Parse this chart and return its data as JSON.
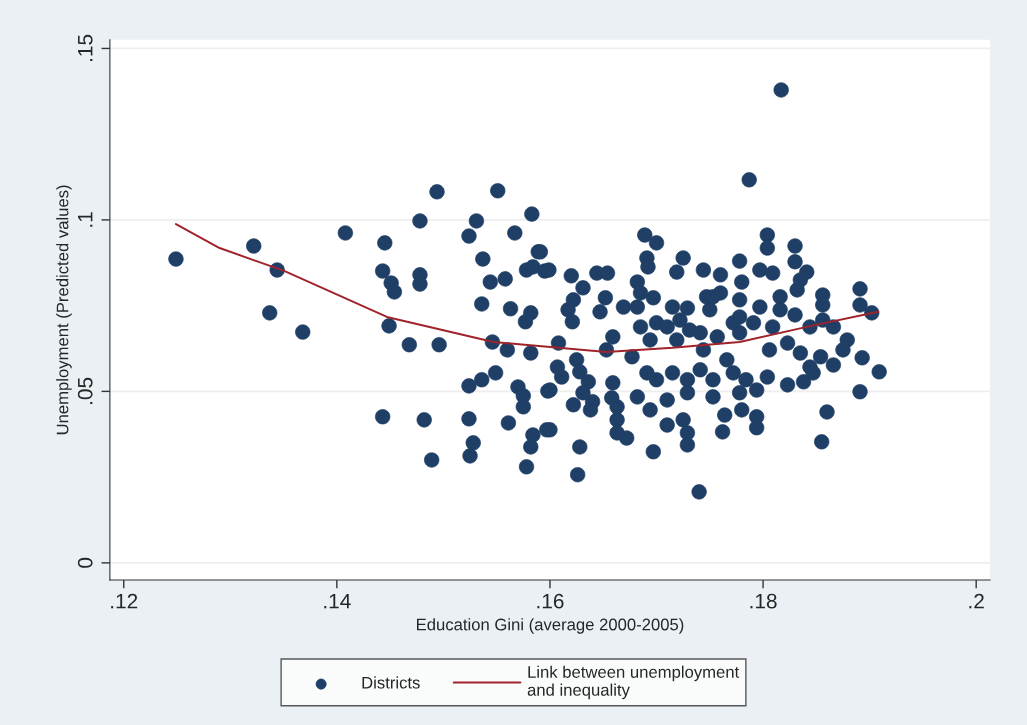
{
  "chart_data": {
    "type": "scatter",
    "xlabel": "Education Gini (average 2000-2005)",
    "ylabel": "Unemployment (Predicted values)",
    "xlim": [
      0.1187,
      0.2013
    ],
    "ylim": [
      -0.005,
      0.1525
    ],
    "xticks": [
      {
        "value": 0.12,
        "label": ".12"
      },
      {
        "value": 0.14,
        "label": ".14"
      },
      {
        "value": 0.16,
        "label": ".16"
      },
      {
        "value": 0.18,
        "label": ".18"
      },
      {
        "value": 0.2,
        "label": ".2"
      }
    ],
    "yticks": [
      {
        "value": 0,
        "label": "0"
      },
      {
        "value": 0.05,
        "label": ".05"
      },
      {
        "value": 0.1,
        "label": ".1"
      },
      {
        "value": 0.15,
        "label": ".15"
      }
    ],
    "grid": "y",
    "legend": "bottom",
    "marker": "circle",
    "series": [
      {
        "name": "Districts",
        "color": "#1f3f66",
        "x": [
          0.1249,
          0.1322,
          0.1344,
          0.1337,
          0.1368,
          0.1408,
          0.1445,
          0.1443,
          0.1451,
          0.1454,
          0.1449,
          0.1468,
          0.1496,
          0.1478,
          0.1478,
          0.1478,
          0.1494,
          0.1443,
          0.1482,
          0.1489,
          0.1551,
          0.1531,
          0.1524,
          0.1537,
          0.1544,
          0.1558,
          0.1536,
          0.1563,
          0.1583,
          0.1567,
          0.1589,
          0.1578,
          0.1584,
          0.1595,
          0.1582,
          0.1577,
          0.1546,
          0.156,
          0.1582,
          0.1549,
          0.1536,
          0.1524,
          0.157,
          0.1575,
          0.1575,
          0.1598,
          0.1524,
          0.1561,
          0.1528,
          0.1525,
          0.1584,
          0.1582,
          0.1578,
          0.1597,
          0.1817,
          0.1787,
          0.1689,
          0.17,
          0.1691,
          0.1692,
          0.1725,
          0.1719,
          0.1744,
          0.176,
          0.1778,
          0.1804,
          0.1804,
          0.183,
          0.183,
          0.1797,
          0.1809,
          0.1841,
          0.1835,
          0.178,
          0.1891,
          0.1891,
          0.1902,
          0.1856,
          0.1856,
          0.1832,
          0.1816,
          0.176,
          0.1747,
          0.1778,
          0.1591,
          0.1599,
          0.162,
          0.1631,
          0.1622,
          0.1617,
          0.1621,
          0.1644,
          0.1654,
          0.1652,
          0.1647,
          0.1669,
          0.1682,
          0.1685,
          0.1697,
          0.1682,
          0.1715,
          0.1729,
          0.1753,
          0.175,
          0.1778,
          0.1797,
          0.1816,
          0.183,
          0.1844,
          0.1856,
          0.1866,
          0.1608,
          0.1653,
          0.1659,
          0.1677,
          0.1685,
          0.17,
          0.1694,
          0.171,
          0.1722,
          0.1731,
          0.1719,
          0.1741,
          0.1744,
          0.1757,
          0.1772,
          0.1778,
          0.1791,
          0.1809,
          0.1806,
          0.1823,
          0.1835,
          0.1879,
          0.1875,
          0.1854,
          0.1866,
          0.1893,
          0.1909,
          0.1844,
          0.1847,
          0.1838,
          0.1823,
          0.1891,
          0.186,
          0.1855,
          0.1607,
          0.1611,
          0.16,
          0.1625,
          0.1628,
          0.1636,
          0.1631,
          0.1622,
          0.164,
          0.1638,
          0.1659,
          0.1658,
          0.1663,
          0.1663,
          0.1663,
          0.1672,
          0.16,
          0.1628,
          0.1626,
          0.1682,
          0.1691,
          0.17,
          0.1694,
          0.171,
          0.1715,
          0.1729,
          0.1729,
          0.1741,
          0.1753,
          0.1766,
          0.1772,
          0.1784,
          0.1778,
          0.1794,
          0.1804,
          0.1753,
          0.171,
          0.1725,
          0.1729,
          0.1729,
          0.1764,
          0.1762,
          0.178,
          0.1794,
          0.1794,
          0.1697,
          0.174
        ],
        "values": [
          0.0886,
          0.0924,
          0.0854,
          0.0729,
          0.0673,
          0.0962,
          0.0933,
          0.0851,
          0.0816,
          0.079,
          0.0691,
          0.0636,
          0.0636,
          0.0997,
          0.084,
          0.0813,
          0.1082,
          0.0426,
          0.0417,
          0.03,
          0.1085,
          0.0997,
          0.0953,
          0.0886,
          0.0819,
          0.0828,
          0.0755,
          0.0741,
          0.1017,
          0.0962,
          0.0907,
          0.0854,
          0.0863,
          0.0851,
          0.0729,
          0.0703,
          0.0644,
          0.0621,
          0.0612,
          0.0554,
          0.0534,
          0.0516,
          0.0513,
          0.0487,
          0.0455,
          0.0501,
          0.042,
          0.0408,
          0.035,
          0.0312,
          0.0373,
          0.0338,
          0.028,
          0.0388,
          0.1379,
          0.1117,
          0.0956,
          0.0933,
          0.0889,
          0.0863,
          0.0889,
          0.0848,
          0.0854,
          0.084,
          0.088,
          0.0956,
          0.0918,
          0.0924,
          0.0878,
          0.0854,
          0.0845,
          0.0848,
          0.0825,
          0.0819,
          0.0799,
          0.0752,
          0.0729,
          0.0781,
          0.0752,
          0.0796,
          0.0776,
          0.0787,
          0.0776,
          0.0767,
          0.0907,
          0.0854,
          0.0837,
          0.0802,
          0.0767,
          0.0738,
          0.0703,
          0.0845,
          0.0845,
          0.0773,
          0.0732,
          0.0746,
          0.0819,
          0.0787,
          0.0773,
          0.0746,
          0.0746,
          0.0743,
          0.0776,
          0.0738,
          0.0717,
          0.0746,
          0.0738,
          0.0723,
          0.0688,
          0.0708,
          0.0688,
          0.0641,
          0.0621,
          0.0659,
          0.0601,
          0.0688,
          0.07,
          0.065,
          0.0688,
          0.0708,
          0.0679,
          0.065,
          0.0671,
          0.0621,
          0.0659,
          0.07,
          0.0671,
          0.07,
          0.0688,
          0.0621,
          0.0641,
          0.0612,
          0.065,
          0.0621,
          0.0601,
          0.0577,
          0.0598,
          0.0557,
          0.0571,
          0.0554,
          0.0528,
          0.0519,
          0.0499,
          0.044,
          0.0353,
          0.0571,
          0.0542,
          0.0504,
          0.0592,
          0.0557,
          0.0528,
          0.0496,
          0.0461,
          0.047,
          0.0446,
          0.0525,
          0.0481,
          0.0455,
          0.0417,
          0.0379,
          0.0364,
          0.0388,
          0.0338,
          0.0257,
          0.0484,
          0.0554,
          0.0534,
          0.0446,
          0.0475,
          0.0554,
          0.0534,
          0.0496,
          0.0563,
          0.0534,
          0.0592,
          0.0554,
          0.0534,
          0.0496,
          0.0504,
          0.0542,
          0.0484,
          0.0402,
          0.0417,
          0.0379,
          0.0344,
          0.0431,
          0.0382,
          0.0446,
          0.0426,
          0.0394,
          0.0324,
          0.0207
        ]
      },
      {
        "name": "Link between unemployment\nand inequality",
        "type": "line",
        "color": "#a0232b",
        "marker": "none",
        "x": [
          0.1249,
          0.129,
          0.135,
          0.1447,
          0.1547,
          0.1653,
          0.1715,
          0.1778,
          0.1841,
          0.1908
        ],
        "values": [
          0.0988,
          0.0918,
          0.0852,
          0.0717,
          0.0644,
          0.0615,
          0.0627,
          0.0644,
          0.0688,
          0.0732
        ]
      }
    ]
  }
}
